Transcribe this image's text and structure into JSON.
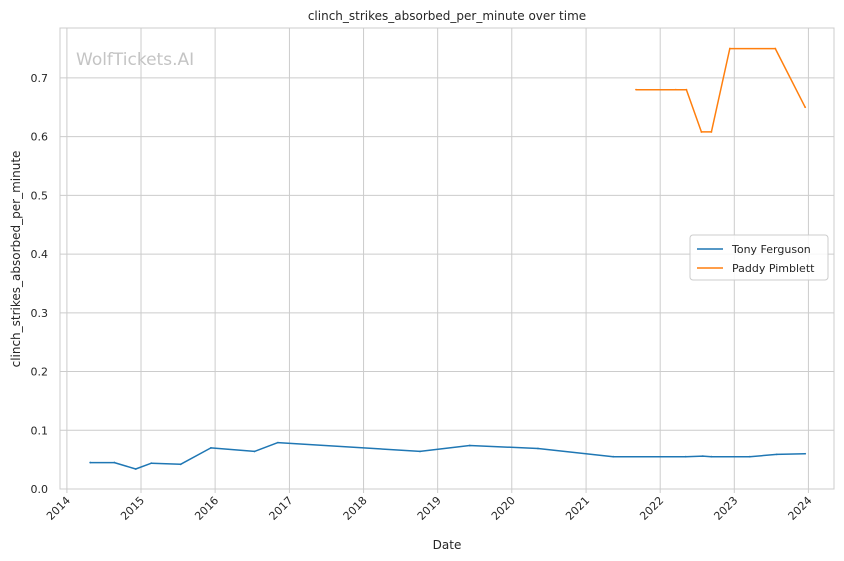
{
  "watermark": "WolfTickets.AI",
  "chart_data": {
    "type": "line",
    "title": "clinch_strikes_absorbed_per_minute over time",
    "xlabel": "Date",
    "ylabel": "clinch_strikes_absorbed_per_minute",
    "x_ticks": [
      "2014",
      "2015",
      "2016",
      "2017",
      "2018",
      "2019",
      "2020",
      "2021",
      "2022",
      "2023",
      "2024"
    ],
    "y_ticks": [
      "0.0",
      "0.1",
      "0.2",
      "0.3",
      "0.4",
      "0.5",
      "0.6",
      "0.7"
    ],
    "xlim": [
      "2013-11-28",
      "2024-05-06"
    ],
    "ylim": [
      0,
      0.785
    ],
    "grid": true,
    "legend_position": "center-right",
    "series": [
      {
        "name": "Tony Ferguson",
        "color": "#1f77b4",
        "points": [
          [
            "2014-04-26",
            0.045
          ],
          [
            "2014-08-23",
            0.045
          ],
          [
            "2014-12-06",
            0.034
          ],
          [
            "2015-02-21",
            0.044
          ],
          [
            "2015-07-15",
            0.042
          ],
          [
            "2015-12-11",
            0.07
          ],
          [
            "2016-07-13",
            0.064
          ],
          [
            "2016-11-05",
            0.079
          ],
          [
            "2018-10-06",
            0.064
          ],
          [
            "2019-06-08",
            0.074
          ],
          [
            "2020-05-09",
            0.069
          ],
          [
            "2021-05-15",
            0.055
          ],
          [
            "2022-05-07",
            0.055
          ],
          [
            "2022-07-30",
            0.056
          ],
          [
            "2022-09-10",
            0.055
          ],
          [
            "2023-03-18",
            0.055
          ],
          [
            "2023-07-29",
            0.059
          ],
          [
            "2023-12-16",
            0.06
          ]
        ]
      },
      {
        "name": "Paddy Pimblett",
        "color": "#ff7f0e",
        "points": [
          [
            "2021-09-04",
            0.68
          ],
          [
            "2022-03-19",
            0.68
          ],
          [
            "2022-05-10",
            0.68
          ],
          [
            "2022-07-23",
            0.608
          ],
          [
            "2022-09-10",
            0.608
          ],
          [
            "2022-12-10",
            0.75
          ],
          [
            "2023-07-22",
            0.75
          ],
          [
            "2023-12-16",
            0.65
          ]
        ]
      }
    ]
  }
}
